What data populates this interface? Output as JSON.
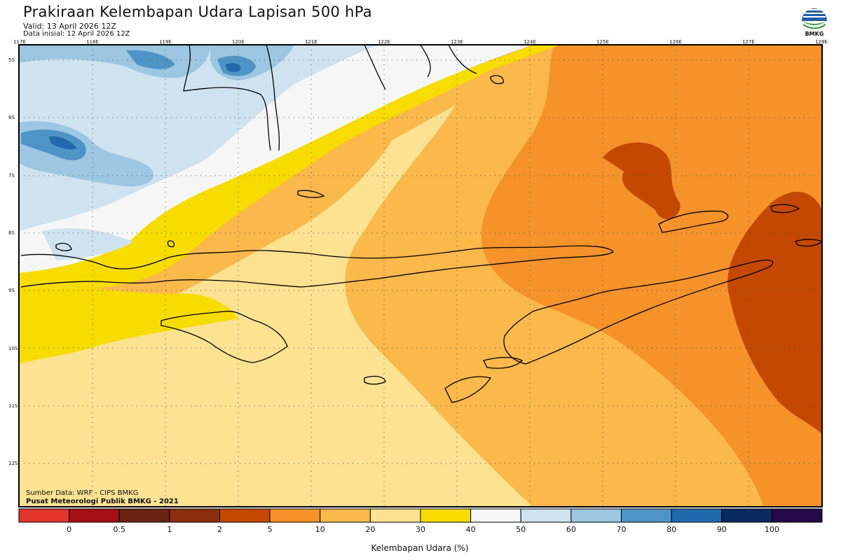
{
  "title": "Prakiraan Kelembapan Udara Lapisan 500 hPa",
  "valid": "Valid: 13 April 2026 12Z",
  "initial": "Data inisial: 12 April 2026 12Z",
  "logo_text": "BMKG",
  "longitude_labels": [
    "117E",
    "118E",
    "119E",
    "120E",
    "121E",
    "122E",
    "123E",
    "124E",
    "125E",
    "126E",
    "127E",
    "128E"
  ],
  "latitude_labels": [
    "5S",
    "6S",
    "7S",
    "8S",
    "9S",
    "10S",
    "11S",
    "12S"
  ],
  "source_line1": "Sumber Data: WRF - CIPS BMKG",
  "source_line2": "Pusat Meteorologi Publik BMKG - 2021",
  "colorbar": {
    "title": "Kelembapan Udara (%)",
    "labels": [
      "0",
      "0.5",
      "1",
      "2",
      "5",
      "10",
      "20",
      "30",
      "40",
      "50",
      "60",
      "70",
      "80",
      "90",
      "100"
    ],
    "colors": [
      "#e3352b",
      "#a50f15",
      "#6b2412",
      "#8b2e0b",
      "#c44800",
      "#f5922a",
      "#fbb84b",
      "#fde292",
      "#f7dc00",
      "#f6f6f6",
      "#cfe2f0",
      "#9cc6e1",
      "#4f94c6",
      "#2169ad",
      "#0b2a5e",
      "#260948"
    ]
  }
}
